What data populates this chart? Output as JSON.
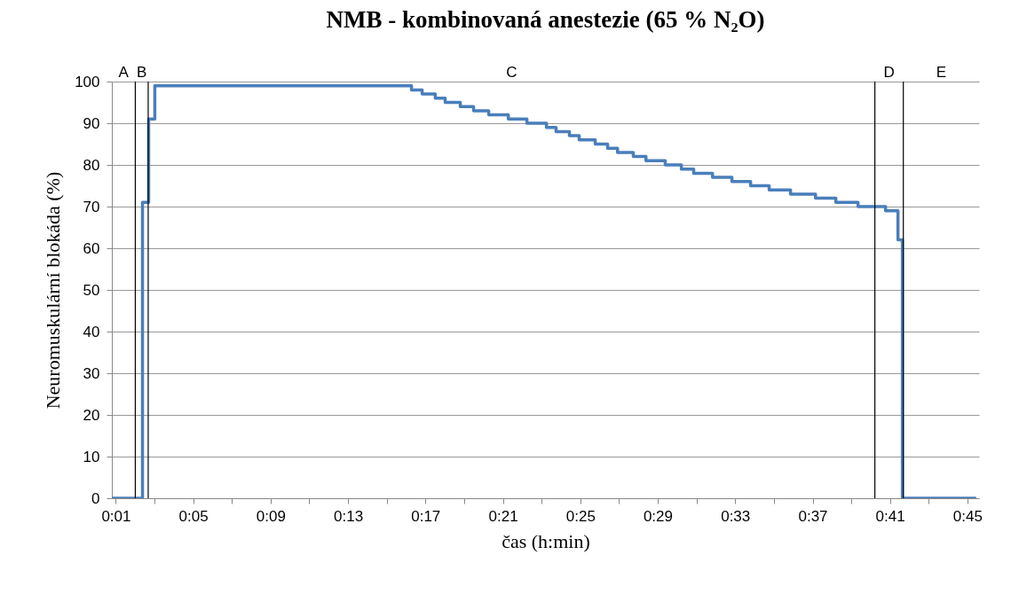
{
  "chart_data": {
    "type": "step",
    "title": "NMB - kombinovaná anestezie (65 % N₂O)",
    "xlabel": "čas (h:min)",
    "ylabel": "Neuromuskulární blokáda (%)",
    "x": [
      0.0133,
      0.0397,
      0.045,
      0.0503,
      0.2713,
      0.2805,
      0.2918,
      0.3003,
      0.3133,
      0.3248,
      0.3378,
      0.3547,
      0.3707,
      0.3875,
      0.3958,
      0.4073,
      0.4157,
      0.4295,
      0.4402,
      0.4487,
      0.4623,
      0.4732,
      0.4898,
      0.5037,
      0.5143,
      0.5305,
      0.5472,
      0.5633,
      0.5793,
      0.5977,
      0.6192,
      0.6367,
      0.6558,
      0.6795,
      0.6902,
      0.694,
      0.7575
    ],
    "series": [
      {
        "color": "#4a7ebb",
        "values": [
          0,
          71,
          91,
          99,
          98,
          97,
          96,
          95,
          94,
          93,
          92,
          91,
          90,
          89,
          88,
          87,
          86,
          85,
          84,
          83,
          82,
          81,
          80,
          79,
          78,
          77,
          76,
          75,
          74,
          73,
          72,
          71,
          70,
          69,
          62,
          0,
          0
        ]
      }
    ],
    "xlim": [
      0.0133,
      0.76
    ],
    "xticks": [
      {
        "value": 0.0167,
        "label": "0:01"
      },
      {
        "value": 0.05,
        "label": null
      },
      {
        "value": 0.0833,
        "label": "0:05"
      },
      {
        "value": 0.1167,
        "label": null
      },
      {
        "value": 0.15,
        "label": "0:09"
      },
      {
        "value": 0.1833,
        "label": null
      },
      {
        "value": 0.2167,
        "label": "0:13"
      },
      {
        "value": 0.25,
        "label": null
      },
      {
        "value": 0.2833,
        "label": "0:17"
      },
      {
        "value": 0.3167,
        "label": null
      },
      {
        "value": 0.35,
        "label": "0:21"
      },
      {
        "value": 0.3833,
        "label": null
      },
      {
        "value": 0.4167,
        "label": "0:25"
      },
      {
        "value": 0.45,
        "label": null
      },
      {
        "value": 0.4833,
        "label": "0:29"
      },
      {
        "value": 0.5167,
        "label": null
      },
      {
        "value": 0.55,
        "label": "0:33"
      },
      {
        "value": 0.5833,
        "label": null
      },
      {
        "value": 0.6167,
        "label": "0:37"
      },
      {
        "value": 0.65,
        "label": null
      },
      {
        "value": 0.6833,
        "label": "0:41"
      },
      {
        "value": 0.7167,
        "label": null
      },
      {
        "value": 0.75,
        "label": "0:45"
      }
    ],
    "ylim": [
      0,
      100
    ],
    "yticks": [
      0,
      10,
      20,
      30,
      40,
      50,
      60,
      70,
      80,
      90,
      100
    ],
    "grid": "y",
    "ref_lines": [
      {
        "axis": "x",
        "value": 0.0335,
        "color": "#000000"
      },
      {
        "axis": "x",
        "value": 0.0446,
        "color": "#000000"
      },
      {
        "axis": "x",
        "value": 0.6703,
        "color": "#000000"
      },
      {
        "axis": "x",
        "value": 0.6948,
        "color": "#000000"
      }
    ],
    "annotations": [
      "A",
      "B",
      "C",
      "D",
      "E"
    ]
  }
}
